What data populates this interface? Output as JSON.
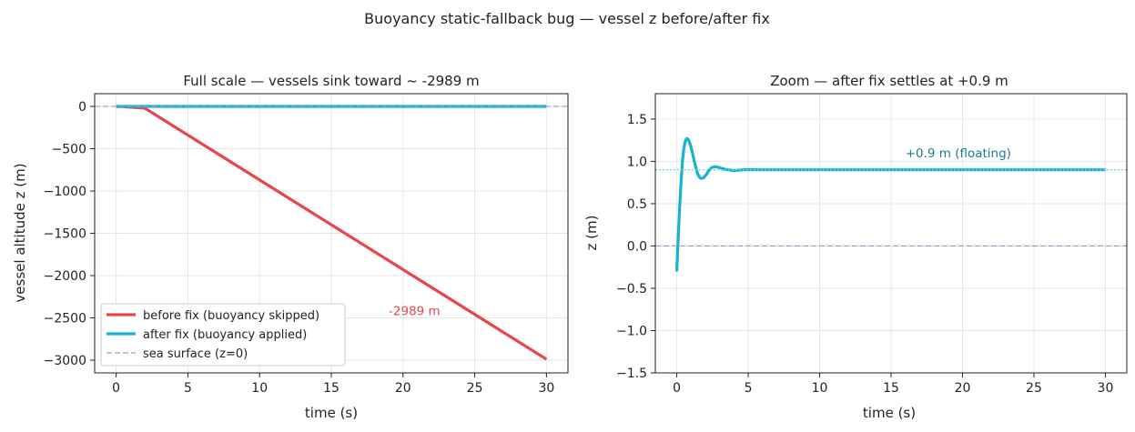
{
  "suptitle": "Buoyancy static-fallback bug — vessel z before/after fix",
  "colors": {
    "before": "#e8474a",
    "after": "#14b3d0",
    "sea": "#8aa2c4",
    "floatline": "#6ecfe0",
    "grid": "#e6e6e6",
    "annot_after": "#1a7f8c"
  },
  "chart_data": [
    {
      "type": "line",
      "title": "Full scale — vessels sink toward ~ -2989 m",
      "xlabel": "time (s)",
      "ylabel": "vessel altitude z (m)",
      "xlim": [
        -1.5,
        31.5
      ],
      "ylim": [
        -3150,
        150
      ],
      "xticks": [
        0,
        5,
        10,
        15,
        20,
        25,
        30
      ],
      "yticks": [
        0,
        -500,
        -1000,
        -1500,
        -2000,
        -2500,
        -3000
      ],
      "ytick_labels": [
        "0",
        "−500",
        "−1000",
        "−1500",
        "−2000",
        "−2500",
        "−3000"
      ],
      "grid": true,
      "legend_position": "lower-left",
      "series": [
        {
          "name": "before fix  (buoyancy skipped)",
          "key": "before",
          "x": [
            0,
            0.5,
            1,
            1.5,
            2,
            30
          ],
          "y": [
            0,
            -4,
            -10,
            -15,
            -22,
            -2989
          ]
        },
        {
          "name": "after fix  (buoyancy applied)",
          "key": "after",
          "x": [
            0,
            30
          ],
          "y": [
            0,
            0
          ]
        },
        {
          "name": "sea surface (z=0)",
          "key": "sea",
          "hline": 0
        }
      ],
      "annotations": [
        {
          "text": "-2989 m",
          "x": 19,
          "y": -2470,
          "key": "before"
        }
      ]
    },
    {
      "type": "line",
      "title": "Zoom — after fix settles at +0.9 m",
      "xlabel": "time (s)",
      "ylabel": "z (m)",
      "xlim": [
        -1.5,
        31.5
      ],
      "ylim": [
        -1.5,
        1.8
      ],
      "xticks": [
        0,
        5,
        10,
        15,
        20,
        25,
        30
      ],
      "yticks": [
        1.5,
        1.0,
        0.5,
        0.0,
        -0.5,
        -1.0,
        -1.5
      ],
      "ytick_labels": [
        "1.5",
        "1.0",
        "0.5",
        "0.0",
        "−0.5",
        "−1.0",
        "−1.5"
      ],
      "grid": true,
      "series": [
        {
          "name": "after fix",
          "key": "after",
          "x": [
            0,
            0.1,
            0.2,
            0.3,
            0.4,
            0.5,
            0.6,
            0.7,
            0.8,
            0.9,
            1.0,
            1.1,
            1.2,
            1.3,
            1.4,
            1.5,
            1.6,
            1.7,
            1.8,
            1.9,
            2.0,
            2.1,
            2.2,
            2.3,
            2.4,
            2.5,
            2.6,
            2.7,
            2.8,
            2.9,
            3.0,
            3.2,
            3.4,
            3.6,
            3.8,
            4.0,
            4.3,
            4.6,
            5.0,
            6.0,
            8.0,
            10,
            15,
            20,
            25,
            30
          ],
          "y": [
            -0.3,
            0.08,
            0.45,
            0.76,
            1.0,
            1.16,
            1.24,
            1.27,
            1.26,
            1.22,
            1.17,
            1.1,
            1.02,
            0.95,
            0.89,
            0.84,
            0.81,
            0.8,
            0.8,
            0.81,
            0.83,
            0.85,
            0.88,
            0.9,
            0.92,
            0.93,
            0.935,
            0.937,
            0.935,
            0.93,
            0.925,
            0.915,
            0.905,
            0.9,
            0.895,
            0.893,
            0.895,
            0.9,
            0.902,
            0.9,
            0.9,
            0.9,
            0.9,
            0.9,
            0.9,
            0.9
          ]
        },
        {
          "name": "float level",
          "key": "floatline",
          "hline": 0.9
        },
        {
          "name": "sea surface",
          "key": "sea",
          "hline": 0
        }
      ],
      "annotations": [
        {
          "text": "+0.9 m (floating)",
          "x": 16,
          "y": 1.05,
          "key": "annot_after"
        }
      ]
    }
  ]
}
